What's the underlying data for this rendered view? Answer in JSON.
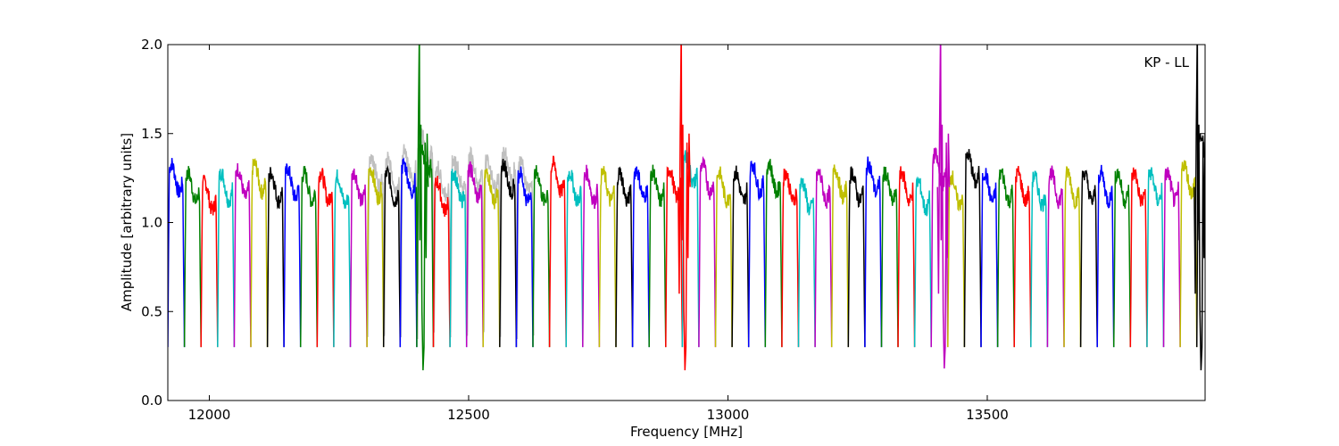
{
  "chart_data": {
    "type": "line",
    "title": "",
    "annotation": "KP - LL",
    "xlabel": "Frequency [MHz]",
    "ylabel": "Amplitude [arbitrary units]",
    "xlim": [
      11920,
      13920
    ],
    "ylim": [
      0.0,
      2.0
    ],
    "xticks": [
      12000,
      12500,
      13000,
      13500
    ],
    "yticks": [
      0.0,
      0.5,
      1.0,
      1.5,
      2.0
    ],
    "xtick_labels": [
      "12000",
      "12500",
      "13000",
      "13500"
    ],
    "ytick_labels": [
      "0.0",
      "0.5",
      "1.0",
      "1.5",
      "2.0"
    ],
    "grid": false,
    "legend": "none",
    "band_width_mhz": 32,
    "color_cycle": [
      "#0000ff",
      "#008000",
      "#ff0000",
      "#00bfbf",
      "#bf00bf",
      "#bfbf00",
      "#000000"
    ],
    "background_series_color": "#bfbfbf",
    "band_starts": [
      11920,
      11952,
      11984,
      12016,
      12048,
      12080,
      12112,
      12144,
      12176,
      12208,
      12240,
      12272,
      12304,
      12336,
      12368,
      12400,
      12432,
      12464,
      12496,
      12528,
      12560,
      12592,
      12624,
      12656,
      12688,
      12720,
      12752,
      12784,
      12816,
      12848,
      12880,
      12912,
      12944,
      12976,
      13008,
      13040,
      13072,
      13104,
      13136,
      13168,
      13200,
      13232,
      13264,
      13296,
      13328,
      13360,
      13392,
      13424,
      13456,
      13488,
      13520,
      13552,
      13584,
      13616,
      13648,
      13680,
      13712,
      13744,
      13776,
      13808,
      13840,
      13872,
      13904
    ],
    "band_levels": [
      1.25,
      1.2,
      1.15,
      1.2,
      1.22,
      1.25,
      1.2,
      1.22,
      1.2,
      1.2,
      1.18,
      1.2,
      1.22,
      1.2,
      1.25,
      1.35,
      1.15,
      1.2,
      1.22,
      1.2,
      1.25,
      1.2,
      1.2,
      1.25,
      1.2,
      1.2,
      1.2,
      1.2,
      1.22,
      1.2,
      1.22,
      1.3,
      1.25,
      1.2,
      1.2,
      1.25,
      1.25,
      1.2,
      1.15,
      1.2,
      1.22,
      1.2,
      1.25,
      1.2,
      1.2,
      1.15,
      1.3,
      1.18,
      1.3,
      1.2,
      1.2,
      1.2,
      1.18,
      1.2,
      1.2,
      1.2,
      1.2,
      1.2,
      1.2,
      1.2,
      1.2,
      1.25,
      1.4
    ],
    "band_dip": 0.3,
    "spikes": [
      {
        "x": 12405,
        "peak": 2.0,
        "trough": 0.17
      },
      {
        "x": 12910,
        "peak": 2.0,
        "trough": 0.17
      },
      {
        "x": 13410,
        "peak": 2.0,
        "trough": 0.18
      },
      {
        "x": 13905,
        "peak": 2.0,
        "trough": 0.17
      }
    ],
    "background_series_range": [
      12300,
      12620
    ]
  }
}
